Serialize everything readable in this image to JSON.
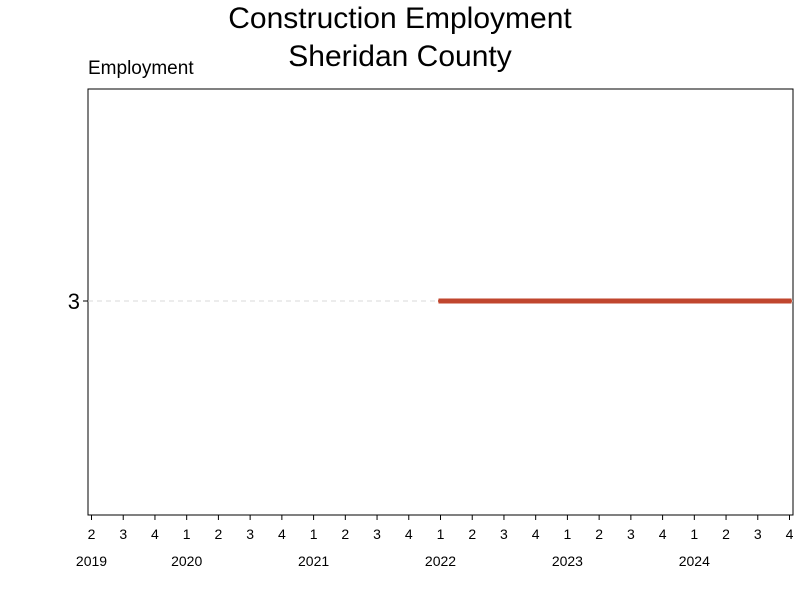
{
  "chart_data": {
    "type": "line",
    "title": "Construction Employment",
    "subtitle": "Sheridan County",
    "ylabel": "Employment",
    "xlabel": "",
    "quarter_ticks": [
      {
        "q": "2",
        "year": 2019
      },
      {
        "q": "3",
        "year": 2019
      },
      {
        "q": "4",
        "year": 2019
      },
      {
        "q": "1",
        "year": 2020
      },
      {
        "q": "2",
        "year": 2020
      },
      {
        "q": "3",
        "year": 2020
      },
      {
        "q": "4",
        "year": 2020
      },
      {
        "q": "1",
        "year": 2021
      },
      {
        "q": "2",
        "year": 2021
      },
      {
        "q": "3",
        "year": 2021
      },
      {
        "q": "4",
        "year": 2021
      },
      {
        "q": "1",
        "year": 2022
      },
      {
        "q": "2",
        "year": 2022
      },
      {
        "q": "3",
        "year": 2022
      },
      {
        "q": "4",
        "year": 2022
      },
      {
        "q": "1",
        "year": 2023
      },
      {
        "q": "2",
        "year": 2023
      },
      {
        "q": "3",
        "year": 2023
      },
      {
        "q": "4",
        "year": 2023
      },
      {
        "q": "1",
        "year": 2024
      },
      {
        "q": "2",
        "year": 2024
      },
      {
        "q": "3",
        "year": 2024
      },
      {
        "q": "4",
        "year": 2024
      }
    ],
    "year_labels": [
      "2019",
      "2020",
      "2021",
      "2022",
      "2023",
      "2024"
    ],
    "y_ticks": [
      3
    ],
    "ylim": [
      2,
      4
    ],
    "grid": true,
    "series": [
      {
        "color": "#c0462e",
        "points": [
          {
            "x": "2022 Q1",
            "y": 3
          },
          {
            "x": "2022 Q2",
            "y": 3
          },
          {
            "x": "2022 Q3",
            "y": 3
          },
          {
            "x": "2022 Q4",
            "y": 3
          },
          {
            "x": "2023 Q1",
            "y": 3
          },
          {
            "x": "2023 Q2",
            "y": 3
          },
          {
            "x": "2023 Q3",
            "y": 3
          },
          {
            "x": "2023 Q4",
            "y": 3
          },
          {
            "x": "2024 Q1",
            "y": 3
          },
          {
            "x": "2024 Q2",
            "y": 3
          },
          {
            "x": "2024 Q3",
            "y": 3
          },
          {
            "x": "2024 Q4",
            "y": 3
          }
        ]
      }
    ]
  }
}
